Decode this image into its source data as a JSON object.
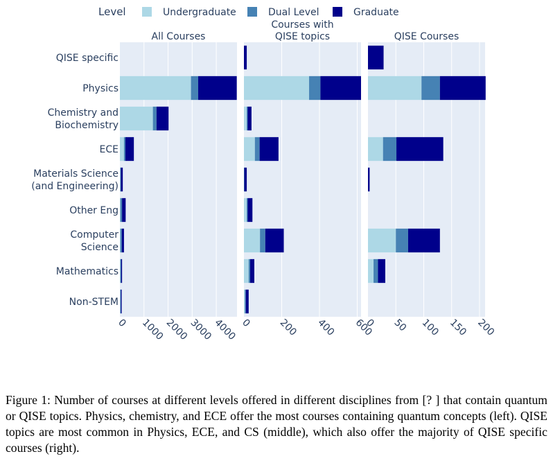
{
  "legend": {
    "title": "Level",
    "items": [
      {
        "label": "Undergraduate",
        "color": "#add8e6"
      },
      {
        "label": "Dual Level",
        "color": "#4682b4"
      },
      {
        "label": "Graduate",
        "color": "#00008b"
      }
    ]
  },
  "chart_data": [
    {
      "type": "bar",
      "orientation": "horizontal",
      "stacked": true,
      "title": "All Courses",
      "categories": [
        "QISE specific",
        "Physics",
        "Chemistry and Biochemistry",
        "ECE",
        "Materials Science (and Engineering)",
        "Other Eng",
        "Computer Science",
        "Mathematics",
        "Non-STEM"
      ],
      "category_lines": [
        [
          "QISE specific"
        ],
        [
          "Physics"
        ],
        [
          "Chemistry and",
          "Biochemistry"
        ],
        [
          "ECE"
        ],
        [
          "Materials Science",
          "(and Engineering)"
        ],
        [
          "Other Eng"
        ],
        [
          "Computer",
          "Science"
        ],
        [
          "Mathematics"
        ],
        [
          "Non-STEM"
        ]
      ],
      "series": [
        {
          "name": "Undergraduate",
          "values": [
            0,
            2950,
            1370,
            170,
            20,
            20,
            20,
            20,
            20
          ]
        },
        {
          "name": "Dual Level",
          "values": [
            0,
            300,
            150,
            60,
            20,
            70,
            60,
            30,
            20
          ]
        },
        {
          "name": "Graduate",
          "values": [
            0,
            1600,
            500,
            350,
            80,
            150,
            90,
            40,
            30
          ]
        }
      ],
      "xlim": [
        0,
        4860
      ],
      "ticks": [
        0,
        1000,
        2000,
        3000,
        4000
      ],
      "tick_labels": [
        "0",
        "1000",
        "2000",
        "3000",
        "4000"
      ]
    },
    {
      "type": "bar",
      "orientation": "horizontal",
      "stacked": true,
      "title": "Courses with QISE topics",
      "title_lines": [
        "Courses with",
        "QISE topics"
      ],
      "series": [
        {
          "name": "Undergraduate",
          "values": [
            0,
            345,
            15,
            58,
            0,
            15,
            85,
            25,
            5
          ]
        },
        {
          "name": "Dual Level",
          "values": [
            0,
            60,
            5,
            25,
            2,
            5,
            28,
            8,
            5
          ]
        },
        {
          "name": "Graduate",
          "values": [
            15,
            215,
            20,
            100,
            13,
            25,
            98,
            22,
            15
          ]
        }
      ],
      "xlim": [
        0,
        620
      ],
      "ticks": [
        0,
        200,
        400,
        600
      ],
      "tick_labels": [
        "0",
        "200",
        "400",
        "600"
      ]
    },
    {
      "type": "bar",
      "orientation": "horizontal",
      "stacked": true,
      "title": "QISE Courses",
      "series": [
        {
          "name": "Undergraduate",
          "values": [
            0,
            96,
            0,
            27,
            0,
            0,
            50,
            10,
            0
          ]
        },
        {
          "name": "Dual Level",
          "values": [
            0,
            33,
            0,
            24,
            0,
            0,
            22,
            8,
            0
          ]
        },
        {
          "name": "Graduate",
          "values": [
            28,
            82,
            0,
            84,
            3,
            0,
            57,
            13,
            0
          ]
        }
      ],
      "xlim": [
        0,
        210
      ],
      "ticks": [
        0,
        50,
        100,
        150,
        200
      ],
      "tick_labels": [
        "0",
        "50",
        "100",
        "150",
        "200"
      ]
    }
  ],
  "caption": {
    "text": "Figure 1: Number of courses at different levels offered in different disciplines from [? ] that contain quantum or QISE topics. Physics, chemistry, and ECE offer the most courses containing quantum concepts (left). QISE topics are most common in Physics, ECE, and CS (middle), which also offer the majority of QISE specific courses (right)."
  }
}
